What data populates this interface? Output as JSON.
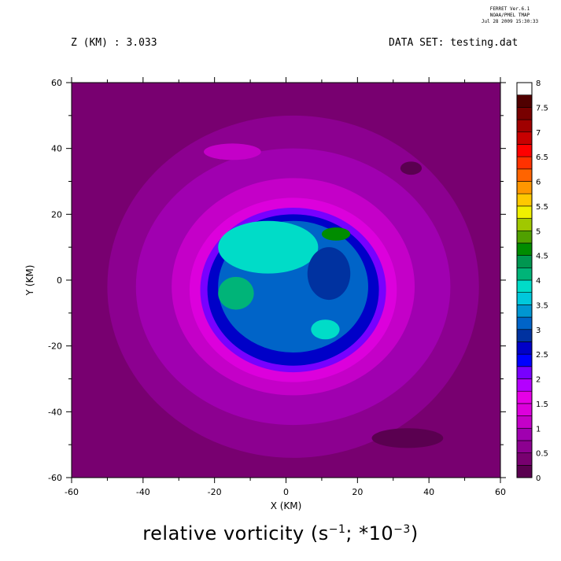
{
  "header": {
    "ferret_line1": "FERRET  Ver.6.1",
    "ferret_line2": "NOAA/PMEL TMAP",
    "ferret_line3": "Jul 28 2009 15:30:33",
    "z_label": "Z (KM) : 3.033",
    "dataset_label": "DATA SET: testing.dat"
  },
  "title_parts": {
    "pre": "relative vorticity (s",
    "sup1": "−1",
    "mid": "; *10",
    "sup2": "−3",
    "post": ")"
  },
  "colors": {
    "levels": [
      "#5a0050",
      "#780070",
      "#8c0090",
      "#a000b0",
      "#c400c8",
      "#dc00dc",
      "#e600e6",
      "#b400ff",
      "#7800ff",
      "#0000ff",
      "#0000c8",
      "#0032a0",
      "#0064c8",
      "#0096d2",
      "#00c8dc",
      "#00dcc8",
      "#00b478",
      "#009650",
      "#008c00",
      "#50a000",
      "#a0c800",
      "#f0f000",
      "#ffc800",
      "#ff9600",
      "#ff6400",
      "#ff3200",
      "#ff0000",
      "#c80000",
      "#a00000",
      "#780000",
      "#500000"
    ]
  },
  "chart_data": {
    "type": "heatmap",
    "title": "relative vorticity (s^-1; *10^-3)",
    "xlabel": "X (KM)",
    "ylabel": "Y (KM)",
    "xlim": [
      -60,
      60
    ],
    "ylim": [
      -60,
      60
    ],
    "x_ticks": [
      "-60",
      "-40",
      "-20",
      "0",
      "20",
      "40",
      "60"
    ],
    "y_ticks": [
      "-60",
      "-40",
      "-20",
      "0",
      "20",
      "40",
      "60"
    ],
    "x_tick_values": [
      -60,
      -40,
      -20,
      0,
      20,
      40,
      60
    ],
    "y_tick_values": [
      -60,
      -40,
      -20,
      0,
      20,
      40,
      60
    ],
    "colorbar": {
      "min": 0,
      "max": 8,
      "step": 0.25,
      "tick_labels": [
        "0",
        "0.5",
        "1",
        "1.5",
        "2",
        "2.5",
        "3",
        "3.5",
        "4",
        "4.5",
        "5",
        "5.5",
        "6",
        "6.5",
        "7",
        "7.5",
        "8"
      ],
      "tick_values": [
        0,
        0.5,
        1,
        1.5,
        2,
        2.5,
        3,
        3.5,
        4,
        4.5,
        5,
        5.5,
        6,
        6.5,
        7,
        7.5,
        8
      ]
    },
    "features": [
      {
        "kind": "background",
        "value": 0.4
      },
      {
        "kind": "ring",
        "center": [
          2,
          -2
        ],
        "rx": 52,
        "ry": 52,
        "value": 0.6
      },
      {
        "kind": "ring",
        "center": [
          2,
          -2
        ],
        "rx": 44,
        "ry": 42,
        "value": 0.8
      },
      {
        "kind": "ring",
        "center": [
          2,
          -2
        ],
        "rx": 34,
        "ry": 33,
        "value": 1.1
      },
      {
        "kind": "ring",
        "center": [
          2,
          -3
        ],
        "rx": 29,
        "ry": 28,
        "value": 1.4
      },
      {
        "kind": "ring",
        "center": [
          2,
          -3
        ],
        "rx": 26,
        "ry": 25,
        "value": 2.2
      },
      {
        "kind": "ring",
        "center": [
          2,
          -3
        ],
        "rx": 24,
        "ry": 23,
        "value": 2.7
      },
      {
        "kind": "core",
        "center": [
          2,
          -2
        ],
        "rx": 21,
        "ry": 20,
        "value": 3.0
      },
      {
        "kind": "blob",
        "center": [
          -5,
          10
        ],
        "rx": 14,
        "ry": 8,
        "value": 3.8
      },
      {
        "kind": "blob",
        "center": [
          -14,
          -4
        ],
        "rx": 5,
        "ry": 5,
        "value": 4.0
      },
      {
        "kind": "blob",
        "center": [
          14,
          14
        ],
        "rx": 4,
        "ry": 2,
        "value": 4.5
      },
      {
        "kind": "blob",
        "center": [
          11,
          -15
        ],
        "rx": 4,
        "ry": 3,
        "value": 3.9
      },
      {
        "kind": "blob",
        "center": [
          12,
          2
        ],
        "rx": 6,
        "ry": 8,
        "value": 2.8
      },
      {
        "kind": "blob",
        "center": [
          -15,
          39
        ],
        "rx": 8,
        "ry": 2.5,
        "value": 1.2
      },
      {
        "kind": "blob",
        "center": [
          34,
          -48
        ],
        "rx": 10,
        "ry": 3,
        "value": 0.2
      },
      {
        "kind": "blob",
        "center": [
          35,
          34
        ],
        "rx": 3,
        "ry": 2,
        "value": 0.2
      }
    ]
  }
}
